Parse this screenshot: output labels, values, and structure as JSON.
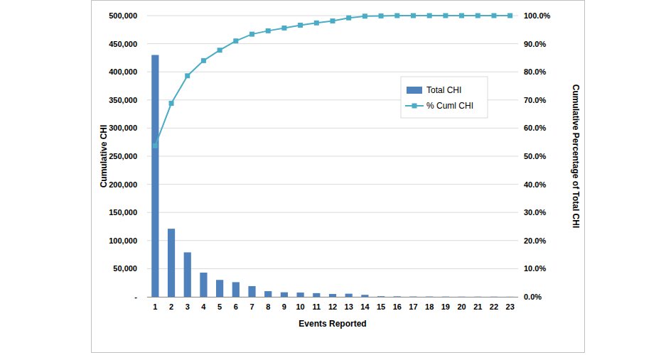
{
  "chart_data": {
    "type": "bar",
    "x_label": "Events Reported",
    "y_label": "Cumulative CHI",
    "y2_label": "Cumulative Percentage of Total CHI",
    "categories": [
      "1",
      "2",
      "3",
      "4",
      "5",
      "6",
      "7",
      "8",
      "9",
      "10",
      "11",
      "12",
      "13",
      "14",
      "15",
      "16",
      "17",
      "18",
      "19",
      "20",
      "21",
      "22",
      "23"
    ],
    "series": [
      {
        "name": "Total CHI",
        "type": "bar",
        "color": "#4f81bd",
        "values": [
          430000,
          121000,
          79000,
          43000,
          30000,
          26000,
          19000,
          10000,
          8000,
          7500,
          6500,
          5000,
          5500,
          3500,
          1000,
          800,
          500,
          500,
          400,
          300,
          300,
          300,
          200
        ]
      },
      {
        "name": "% Cuml CHI",
        "type": "line",
        "axis": "y2",
        "color": "#4bacc6",
        "marker": "square",
        "line_style": "solid",
        "values": [
          53.7,
          68.8,
          78.6,
          84.0,
          87.7,
          91.0,
          93.4,
          94.6,
          95.6,
          96.6,
          97.4,
          98.1,
          99.2,
          99.8,
          99.9,
          100.0,
          100.0,
          100.0,
          100.0,
          100.0,
          100.0,
          100.0,
          100.0
        ]
      }
    ],
    "ylim": [
      0,
      500000
    ],
    "yticks": [
      {
        "value": 0,
        "label": "-"
      },
      {
        "value": 50000,
        "label": "50,000"
      },
      {
        "value": 100000,
        "label": "100,000"
      },
      {
        "value": 150000,
        "label": "150,000"
      },
      {
        "value": 200000,
        "label": "200,000"
      },
      {
        "value": 250000,
        "label": "250,000"
      },
      {
        "value": 300000,
        "label": "300,000"
      },
      {
        "value": 350000,
        "label": "350,000"
      },
      {
        "value": 400000,
        "label": "400,000"
      },
      {
        "value": 450000,
        "label": "450,000"
      },
      {
        "value": 500000,
        "label": "500,000"
      }
    ],
    "y2lim": [
      0,
      100
    ],
    "y2ticks": [
      {
        "value": 0,
        "label": "0.0%"
      },
      {
        "value": 10,
        "label": "10.0%"
      },
      {
        "value": 20,
        "label": "20.0%"
      },
      {
        "value": 30,
        "label": "30.0%"
      },
      {
        "value": 40,
        "label": "40.0%"
      },
      {
        "value": 50,
        "label": "50.0%"
      },
      {
        "value": 60,
        "label": "60.0%"
      },
      {
        "value": 70,
        "label": "70.0%"
      },
      {
        "value": 80,
        "label": "80.0%"
      },
      {
        "value": 90,
        "label": "90.0%"
      },
      {
        "value": 100,
        "label": "100.0%"
      }
    ],
    "grid": true,
    "legend": "right"
  }
}
